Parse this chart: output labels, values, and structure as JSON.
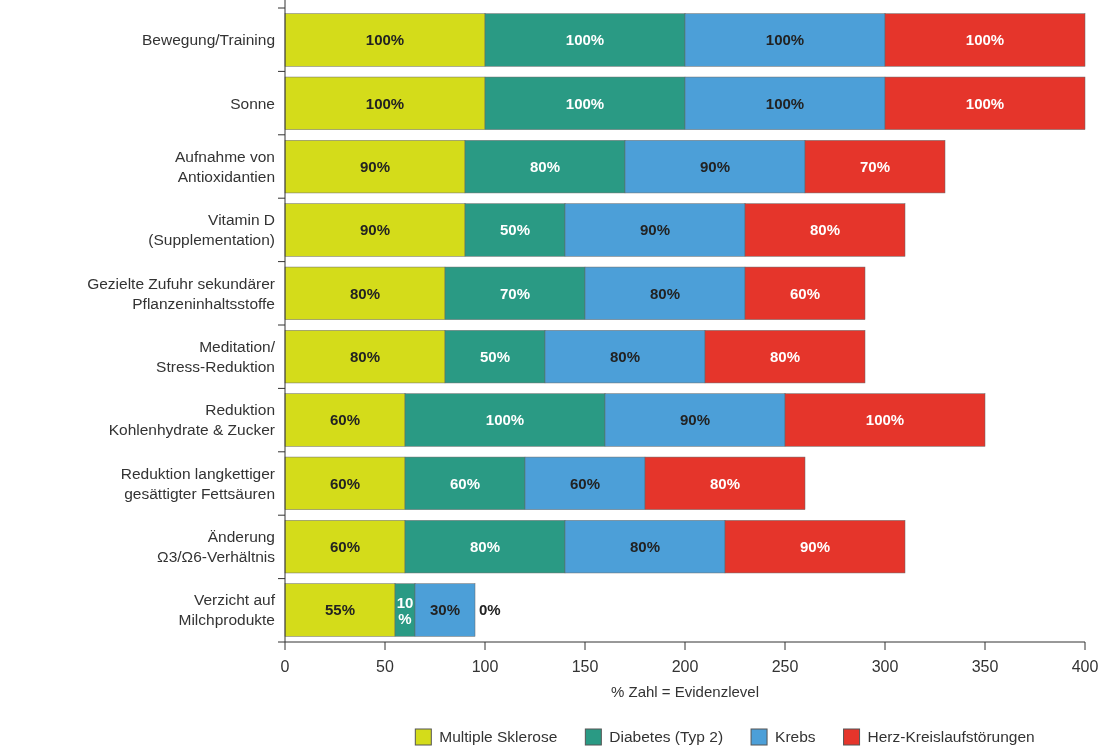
{
  "chart_data": {
    "type": "bar",
    "orientation": "horizontal",
    "stacked": true,
    "categories": [
      "Bewegung/Training",
      "Sonne",
      "Aufnahme von\nAntioxidantien",
      "Vitamin D\n(Supplementation)",
      "Gezielte Zufuhr sekundärer\nPflanzeninhaltsstoffe",
      "Meditation/\nStress-Reduktion",
      "Reduktion\nKohlenhydrate & Zucker",
      "Reduktion langkettiger\ngesättigter Fettsäuren",
      "Änderung\nΩ3/Ω6-Verhältnis",
      "Verzicht auf\nMilchprodukte"
    ],
    "series": [
      {
        "name": "Multiple Sklerose",
        "color": "#d4dc1a",
        "values": [
          100,
          100,
          90,
          90,
          80,
          80,
          60,
          60,
          60,
          55
        ],
        "value_labels": [
          "100%",
          "100%",
          "90%",
          "90%",
          "80%",
          "80%",
          "60%",
          "60%",
          "60%",
          "55%"
        ]
      },
      {
        "name": "Diabetes (Typ 2)",
        "color": "#2a9a84",
        "values": [
          100,
          100,
          80,
          50,
          70,
          50,
          100,
          60,
          80,
          10
        ],
        "value_labels": [
          "100%",
          "100%",
          "80%",
          "50%",
          "70%",
          "50%",
          "100%",
          "60%",
          "80%",
          "10%"
        ]
      },
      {
        "name": "Krebs",
        "color": "#4c9fd8",
        "values": [
          100,
          100,
          90,
          90,
          80,
          80,
          90,
          60,
          80,
          30
        ],
        "value_labels": [
          "100%",
          "100%",
          "90%",
          "90%",
          "80%",
          "80%",
          "90%",
          "60%",
          "80%",
          "30%"
        ]
      },
      {
        "name": "Herz-Kreislaufstörungen",
        "color": "#e5352b",
        "values": [
          100,
          100,
          70,
          80,
          60,
          80,
          100,
          80,
          90,
          0
        ],
        "value_labels": [
          "100%",
          "100%",
          "70%",
          "80%",
          "60%",
          "80%",
          "100%",
          "80%",
          "90%",
          "0%"
        ]
      }
    ],
    "xlim": [
      0,
      400
    ],
    "xticks": [
      0,
      50,
      100,
      150,
      200,
      250,
      300,
      350,
      400
    ],
    "xlabel": "% Zahl = Evidenzlevel",
    "legend": "bottom",
    "grid": false
  }
}
